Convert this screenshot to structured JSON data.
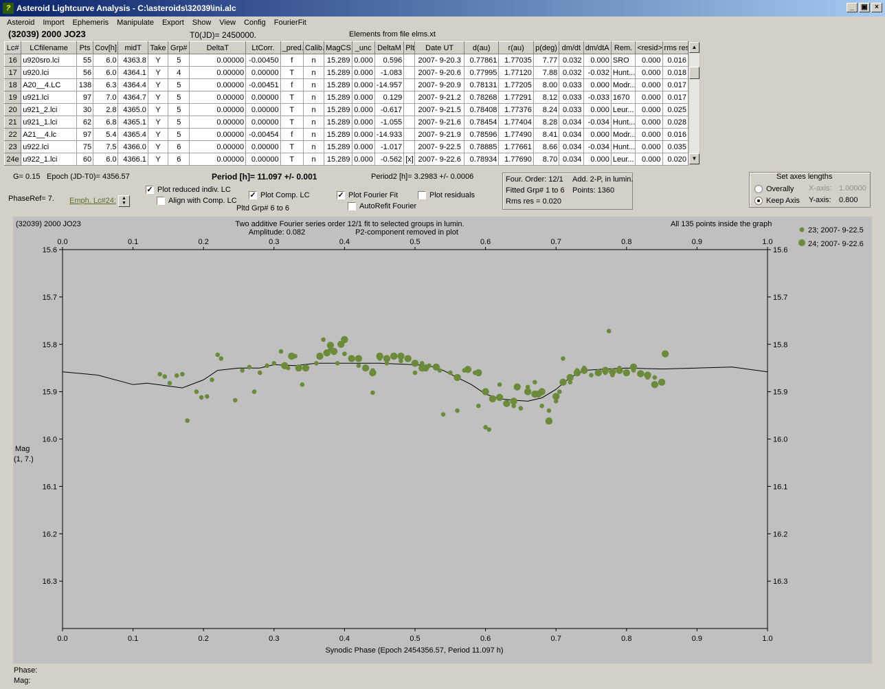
{
  "window": {
    "title": "Asteroid Lightcurve Analysis - C:\\asteroids\\32039\\ini.alc",
    "app_icon": "lightcurve-app-icon",
    "minimize": "_",
    "maximize": "▣",
    "close": "×"
  },
  "menu": [
    "Asteroid",
    "Import",
    "Ephemeris",
    "Manipulate",
    "Export",
    "Show",
    "View",
    "Config",
    "FourierFit"
  ],
  "header": {
    "asteroid": "(32039) 2000 JO23",
    "t0": "T0(JD)= 2450000.",
    "elements": "Elements from file elms.xt"
  },
  "table": {
    "columns": [
      "Lc#",
      "LCfilename",
      "Pts",
      "Cov[h]",
      "midT",
      "Take",
      "Grp#",
      "DeltaT",
      "LtCorr.",
      "_pred.",
      "Calib.",
      "MagCS",
      "_unc",
      "DeltaM",
      "Plt",
      "Date UT",
      "d(au)",
      "r(au)",
      "p(deg)",
      "dm/dt",
      "dm/dtA",
      "Rem.",
      "<resid>",
      "rms res"
    ],
    "rows": [
      [
        "16",
        "u920sro.lci",
        "55",
        "6.0",
        "4363.8",
        "Y",
        "5",
        "0.00000",
        "-0.00450",
        "f",
        "n",
        "15.289",
        "0.000",
        "0.596",
        "",
        "2007- 9-20.3",
        "0.77861",
        "1.77035",
        "7.77",
        "0.032",
        "0.000",
        "SRO",
        "0.000",
        "0.016"
      ],
      [
        "17",
        "u920.lci",
        "56",
        "6.0",
        "4364.1",
        "Y",
        "4",
        "0.00000",
        "0.00000",
        "T",
        "n",
        "15.289",
        "0.000",
        "-1.083",
        "",
        "2007- 9-20.6",
        "0.77995",
        "1.77120",
        "7.88",
        "0.032",
        "-0.032",
        "Hunt...",
        "0.000",
        "0.018"
      ],
      [
        "18",
        "A20__4.LC",
        "138",
        "6.3",
        "4364.4",
        "Y",
        "5",
        "0.00000",
        "-0.00451",
        "f",
        "n",
        "15.289",
        "0.000",
        "-14.957",
        "",
        "2007- 9-20.9",
        "0.78131",
        "1.77205",
        "8.00",
        "0.033",
        "0.000",
        "Modr...",
        "0.000",
        "0.017"
      ],
      [
        "19",
        "u921.lci",
        "97",
        "7.0",
        "4364.7",
        "Y",
        "5",
        "0.00000",
        "0.00000",
        "T",
        "n",
        "15.289",
        "0.000",
        "0.129",
        "",
        "2007- 9-21.2",
        "0.78268",
        "1.77291",
        "8.12",
        "0.033",
        "-0.033",
        "1670",
        "0.000",
        "0.017"
      ],
      [
        "20",
        "u921_2.lci",
        "30",
        "2.8",
        "4365.0",
        "Y",
        "5",
        "0.00000",
        "0.00000",
        "T",
        "n",
        "15.289",
        "0.000",
        "-0.617",
        "",
        "2007- 9-21.5",
        "0.78408",
        "1.77376",
        "8.24",
        "0.033",
        "0.000",
        "Leur...",
        "0.000",
        "0.025"
      ],
      [
        "21",
        "u921_1.lci",
        "62",
        "6.8",
        "4365.1",
        "Y",
        "5",
        "0.00000",
        "0.00000",
        "T",
        "n",
        "15.289",
        "0.000",
        "-1.055",
        "",
        "2007- 9-21.6",
        "0.78454",
        "1.77404",
        "8.28",
        "0.034",
        "-0.034",
        "Hunt...",
        "0.000",
        "0.028"
      ],
      [
        "22",
        "A21__4.lc",
        "97",
        "5.4",
        "4365.4",
        "Y",
        "5",
        "0.00000",
        "-0.00454",
        "f",
        "n",
        "15.289",
        "0.000",
        "-14.933",
        "",
        "2007- 9-21.9",
        "0.78596",
        "1.77490",
        "8.41",
        "0.034",
        "0.000",
        "Modr...",
        "0.000",
        "0.016"
      ],
      [
        "23",
        "u922.lci",
        "75",
        "7.5",
        "4366.0",
        "Y",
        "6",
        "0.00000",
        "0.00000",
        "T",
        "n",
        "15.289",
        "0.000",
        "-1.017",
        "",
        "2007- 9-22.5",
        "0.78885",
        "1.77661",
        "8.66",
        "0.034",
        "-0.034",
        "Hunt...",
        "0.000",
        "0.035"
      ],
      [
        "24e",
        "u922_1.lci",
        "60",
        "6.0",
        "4366.1",
        "Y",
        "6",
        "0.00000",
        "0.00000",
        "T",
        "n",
        "15.289",
        "0.000",
        "-0.562",
        "[x]",
        "2007- 9-22.6",
        "0.78934",
        "1.77690",
        "8.70",
        "0.034",
        "0.000",
        "Leur...",
        "0.000",
        "0.020"
      ]
    ]
  },
  "info": {
    "g": "G= 0.15",
    "epoch": "Epoch (JD-T0)= 4356.57",
    "period": "Period [h]= 11.097 +/- 0.001",
    "period2": "Period2 [h]= 3.2983 +/- 0.0006",
    "phase_ref": "PhaseRef= 7.",
    "emph": "Emph. Lc#24:",
    "pltd_grp": "Pltd Grp#  6  to   6"
  },
  "checks": {
    "plot_reduced": {
      "label": "Plot reduced indiv. LC",
      "checked": true
    },
    "align_comp": {
      "label": "Align with Comp. LC",
      "checked": false
    },
    "plot_comp": {
      "label": "Plot Comp. LC",
      "checked": true
    },
    "plot_fourier": {
      "label": "Plot Fourier Fit",
      "checked": true
    },
    "plot_residuals": {
      "label": "Plot residuals",
      "checked": false
    },
    "autorefit": {
      "label": "AutoRefit Fourier",
      "checked": false
    }
  },
  "fourier_box": {
    "order": "Four. Order: 12/1",
    "add": "Add. 2-P, in lumin.",
    "fitted": "Fitted Grp# 1 to 6",
    "points": "Points: 1360",
    "rms": "Rms res     = 0.020"
  },
  "axes_box": {
    "title": "Set axes lengths",
    "overally": "Overally",
    "keep_axis": "Keep Axis",
    "x_axis_label": "X-axis:",
    "x_axis_value": "1.00000",
    "y_axis_label": "Y-axis:",
    "y_axis_value": "0.800",
    "selected": "keep_axis"
  },
  "plot": {
    "object": "(32039) 2000 JO23",
    "title_line1": "Two additive Fourier series order 12/1 fit to selected groups in lumin.",
    "title_line2": "Amplitude: 0.082",
    "title_line3": "P2-component removed in plot",
    "inside": "All 135 points inside the graph",
    "mag_label": "Mag",
    "mag_sub": "(1, 7.)",
    "footer_phase": "Phase:",
    "footer_mag": "Mag:"
  },
  "chart_data": {
    "type": "scatter",
    "xlabel": "Synodic Phase (Epoch 2454356.57, Period 11.097 h)",
    "ylabel": "Mag",
    "xlim": [
      0.0,
      1.0
    ],
    "ylim": [
      15.6,
      16.4
    ],
    "y_inverted": true,
    "x_ticks": [
      "0.0",
      "0.1",
      "0.2",
      "0.3",
      "0.4",
      "0.5",
      "0.6",
      "0.7",
      "0.8",
      "0.9",
      "1.0"
    ],
    "y_ticks": [
      "15.6",
      "15.7",
      "15.8",
      "15.9",
      "16.0",
      "16.1",
      "16.2",
      "16.3"
    ],
    "point_color": "#6b8a3a",
    "series": [
      {
        "name": "23; 2007- 9-22.5",
        "marker": "small",
        "points": [
          [
            0.138,
            15.863
          ],
          [
            0.145,
            15.868
          ],
          [
            0.152,
            15.882
          ],
          [
            0.162,
            15.866
          ],
          [
            0.17,
            15.863
          ],
          [
            0.177,
            15.961
          ],
          [
            0.19,
            15.9
          ],
          [
            0.197,
            15.912
          ],
          [
            0.205,
            15.91
          ],
          [
            0.212,
            15.875
          ],
          [
            0.22,
            15.822
          ],
          [
            0.225,
            15.83
          ],
          [
            0.245,
            15.918
          ],
          [
            0.255,
            15.855
          ],
          [
            0.265,
            15.848
          ],
          [
            0.272,
            15.9
          ],
          [
            0.28,
            15.86
          ],
          [
            0.29,
            15.845
          ],
          [
            0.3,
            15.84
          ],
          [
            0.31,
            15.815
          ],
          [
            0.32,
            15.85
          ],
          [
            0.33,
            15.825
          ],
          [
            0.34,
            15.885
          ],
          [
            0.36,
            15.84
          ],
          [
            0.37,
            15.79
          ],
          [
            0.38,
            15.81
          ],
          [
            0.39,
            15.84
          ],
          [
            0.4,
            15.82
          ],
          [
            0.42,
            15.845
          ],
          [
            0.44,
            15.855
          ],
          [
            0.44,
            15.902
          ],
          [
            0.45,
            15.83
          ],
          [
            0.46,
            15.84
          ],
          [
            0.48,
            15.835
          ],
          [
            0.5,
            15.86
          ],
          [
            0.51,
            15.84
          ],
          [
            0.52,
            15.845
          ],
          [
            0.535,
            15.855
          ],
          [
            0.54,
            15.948
          ],
          [
            0.55,
            15.86
          ],
          [
            0.56,
            15.94
          ],
          [
            0.57,
            15.855
          ],
          [
            0.585,
            15.86
          ],
          [
            0.59,
            15.93
          ],
          [
            0.6,
            15.9
          ],
          [
            0.6,
            15.975
          ],
          [
            0.605,
            15.98
          ],
          [
            0.62,
            15.885
          ],
          [
            0.63,
            15.925
          ],
          [
            0.64,
            15.93
          ],
          [
            0.65,
            15.935
          ],
          [
            0.66,
            15.89
          ],
          [
            0.67,
            15.88
          ],
          [
            0.68,
            15.93
          ],
          [
            0.69,
            15.94
          ],
          [
            0.7,
            15.92
          ],
          [
            0.705,
            15.9
          ],
          [
            0.71,
            15.83
          ],
          [
            0.72,
            15.88
          ],
          [
            0.73,
            15.855
          ],
          [
            0.74,
            15.85
          ],
          [
            0.75,
            15.865
          ],
          [
            0.76,
            15.86
          ],
          [
            0.77,
            15.86
          ],
          [
            0.775,
            15.772
          ],
          [
            0.78,
            15.865
          ],
          [
            0.79,
            15.85
          ],
          [
            0.8,
            15.86
          ],
          [
            0.81,
            15.855
          ],
          [
            0.82,
            15.86
          ],
          [
            0.83,
            15.87
          ],
          [
            0.84,
            15.87
          ]
        ]
      },
      {
        "name": "24; 2007- 9-22.6",
        "marker": "large",
        "points": [
          [
            0.315,
            15.845
          ],
          [
            0.325,
            15.825
          ],
          [
            0.335,
            15.85
          ],
          [
            0.345,
            15.85
          ],
          [
            0.365,
            15.825
          ],
          [
            0.375,
            15.818
          ],
          [
            0.38,
            15.802
          ],
          [
            0.385,
            15.815
          ],
          [
            0.395,
            15.8
          ],
          [
            0.4,
            15.79
          ],
          [
            0.41,
            15.83
          ],
          [
            0.42,
            15.83
          ],
          [
            0.43,
            15.85
          ],
          [
            0.44,
            15.86
          ],
          [
            0.45,
            15.825
          ],
          [
            0.46,
            15.83
          ],
          [
            0.47,
            15.825
          ],
          [
            0.48,
            15.825
          ],
          [
            0.49,
            15.83
          ],
          [
            0.5,
            15.84
          ],
          [
            0.51,
            15.85
          ],
          [
            0.515,
            15.85
          ],
          [
            0.53,
            15.848
          ],
          [
            0.56,
            15.87
          ],
          [
            0.575,
            15.853
          ],
          [
            0.59,
            15.86
          ],
          [
            0.6,
            15.9
          ],
          [
            0.61,
            15.915
          ],
          [
            0.62,
            15.912
          ],
          [
            0.63,
            15.925
          ],
          [
            0.64,
            15.92
          ],
          [
            0.645,
            15.89
          ],
          [
            0.66,
            15.9
          ],
          [
            0.67,
            15.905
          ],
          [
            0.675,
            15.905
          ],
          [
            0.68,
            15.9
          ],
          [
            0.69,
            15.962
          ],
          [
            0.7,
            15.91
          ],
          [
            0.71,
            15.88
          ],
          [
            0.72,
            15.87
          ],
          [
            0.73,
            15.86
          ],
          [
            0.74,
            15.855
          ],
          [
            0.76,
            15.86
          ],
          [
            0.77,
            15.855
          ],
          [
            0.78,
            15.858
          ],
          [
            0.79,
            15.855
          ],
          [
            0.8,
            15.86
          ],
          [
            0.81,
            15.848
          ],
          [
            0.82,
            15.862
          ],
          [
            0.83,
            15.865
          ],
          [
            0.84,
            15.885
          ],
          [
            0.85,
            15.88
          ],
          [
            0.855,
            15.82
          ]
        ]
      },
      {
        "name": "Fourier fit",
        "type": "line",
        "points": [
          [
            0.0,
            15.858
          ],
          [
            0.05,
            15.865
          ],
          [
            0.1,
            15.885
          ],
          [
            0.12,
            15.882
          ],
          [
            0.15,
            15.888
          ],
          [
            0.17,
            15.892
          ],
          [
            0.2,
            15.875
          ],
          [
            0.22,
            15.855
          ],
          [
            0.25,
            15.85
          ],
          [
            0.28,
            15.85
          ],
          [
            0.3,
            15.843
          ],
          [
            0.33,
            15.845
          ],
          [
            0.36,
            15.84
          ],
          [
            0.4,
            15.84
          ],
          [
            0.45,
            15.84
          ],
          [
            0.5,
            15.843
          ],
          [
            0.52,
            15.845
          ],
          [
            0.54,
            15.855
          ],
          [
            0.56,
            15.87
          ],
          [
            0.58,
            15.885
          ],
          [
            0.6,
            15.905
          ],
          [
            0.62,
            15.915
          ],
          [
            0.64,
            15.918
          ],
          [
            0.66,
            15.92
          ],
          [
            0.68,
            15.913
          ],
          [
            0.7,
            15.895
          ],
          [
            0.72,
            15.87
          ],
          [
            0.74,
            15.855
          ],
          [
            0.77,
            15.852
          ],
          [
            0.8,
            15.85
          ],
          [
            0.85,
            15.852
          ],
          [
            0.9,
            15.85
          ],
          [
            0.95,
            15.848
          ],
          [
            1.0,
            15.858
          ]
        ]
      }
    ]
  }
}
